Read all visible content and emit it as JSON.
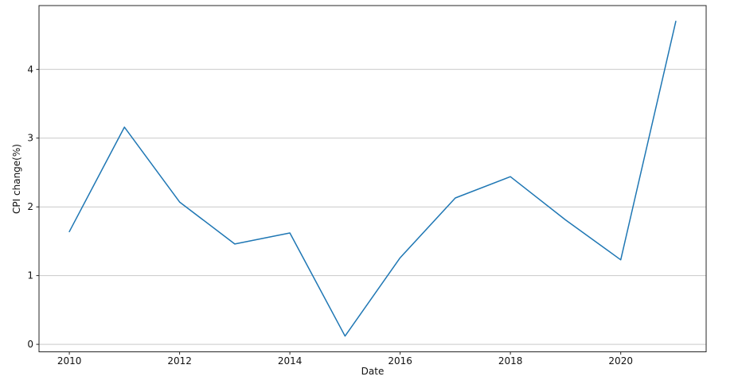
{
  "figure": {
    "background": "#ffffff"
  },
  "chart_data": {
    "type": "line",
    "xlabel": "Date",
    "ylabel": "CPI change(%)",
    "x": [
      2010,
      2011,
      2012,
      2013,
      2014,
      2015,
      2016,
      2017,
      2018,
      2019,
      2020,
      2021
    ],
    "values": [
      1.64,
      3.16,
      2.07,
      1.46,
      1.62,
      0.12,
      1.26,
      2.13,
      2.44,
      1.81,
      1.23,
      4.7
    ],
    "xticks": [
      2010,
      2012,
      2014,
      2016,
      2018,
      2020
    ],
    "xtick_labels": [
      "2010",
      "2012",
      "2014",
      "2016",
      "2018",
      "2020"
    ],
    "yticks": [
      0,
      1,
      2,
      3,
      4
    ],
    "ytick_labels": [
      "0",
      "1",
      "2",
      "3",
      "4"
    ],
    "xlim": [
      2009.45,
      2021.55
    ],
    "ylim": [
      -0.109,
      4.929
    ],
    "grid": "horizontal",
    "grid_color": "#c9c9c9",
    "spine_color": "#262626",
    "tick_color": "#262626",
    "text_color": "#111111",
    "line_color": "#1f77b4",
    "line_width": 1.5
  }
}
